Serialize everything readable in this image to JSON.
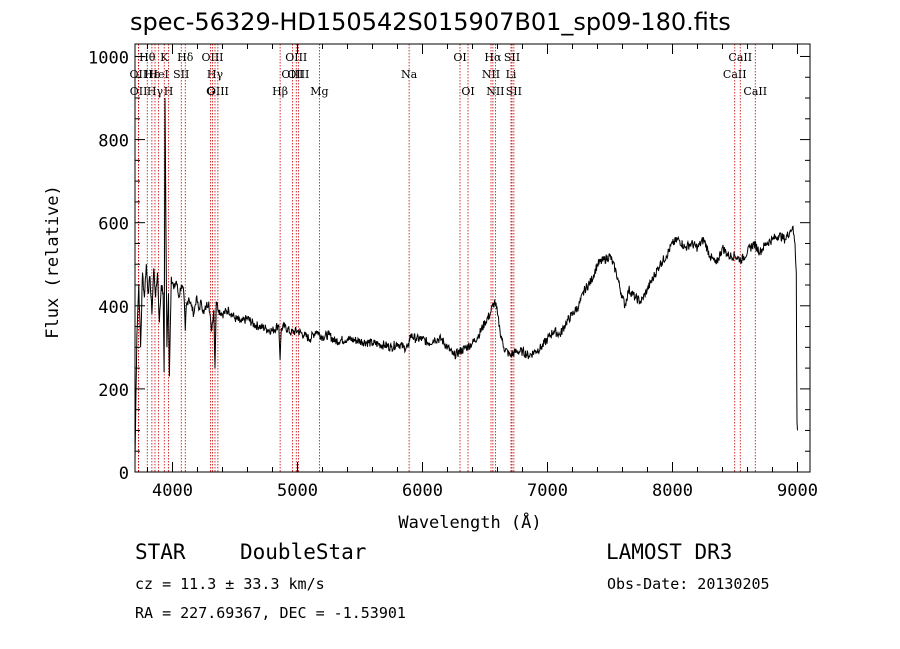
{
  "header": {
    "title": "spec-56329-HD150542S015907B01_sp09-180.fits"
  },
  "info": {
    "object_class": "STAR",
    "subclass": "DoubleStar",
    "survey": "LAMOST DR3",
    "cz": "cz = 11.3 ± 33.3 km/s",
    "obs_date": "Obs-Date: 20130205",
    "radec": "RA = 227.69367, DEC =  -1.53901"
  },
  "chart_data": {
    "type": "line",
    "title": "spec-56329-HD150542S015907B01_sp09-180.fits",
    "xlabel": "Wavelength (Å)",
    "ylabel": "Flux (relative)",
    "xlim": [
      3700,
      9100
    ],
    "ylim": [
      0,
      1030
    ],
    "xticks": [
      4000,
      5000,
      6000,
      7000,
      8000,
      9000
    ],
    "yticks": [
      0,
      200,
      400,
      600,
      800,
      1000
    ],
    "colors": {
      "spectrum": "#000000",
      "lines": "#cc0000",
      "axes": "#000000"
    },
    "series": [
      {
        "name": "spectrum",
        "x": [
          3700,
          3715,
          3730,
          3745,
          3760,
          3775,
          3790,
          3805,
          3820,
          3835,
          3850,
          3865,
          3880,
          3895,
          3910,
          3925,
          3933,
          3940,
          3955,
          3968,
          3975,
          3990,
          4010,
          4030,
          4050,
          4070,
          4090,
          4102,
          4110,
          4130,
          4150,
          4170,
          4190,
          4210,
          4230,
          4250,
          4270,
          4290,
          4310,
          4330,
          4340,
          4350,
          4370,
          4400,
          4450,
          4500,
          4550,
          4600,
          4650,
          4700,
          4750,
          4800,
          4850,
          4861,
          4870,
          4900,
          4950,
          5000,
          5050,
          5100,
          5150,
          5200,
          5250,
          5300,
          5400,
          5500,
          5600,
          5700,
          5750,
          5800,
          5850,
          5890,
          5900,
          5950,
          6000,
          6050,
          6100,
          6150,
          6200,
          6250,
          6300,
          6350,
          6400,
          6450,
          6500,
          6540,
          6563,
          6580,
          6600,
          6620,
          6650,
          6700,
          6750,
          6800,
          6850,
          6900,
          6950,
          7000,
          7050,
          7100,
          7150,
          7200,
          7250,
          7300,
          7350,
          7400,
          7450,
          7500,
          7550,
          7600,
          7620,
          7650,
          7700,
          7750,
          7800,
          7850,
          7900,
          7950,
          8000,
          8050,
          8100,
          8150,
          8200,
          8250,
          8300,
          8350,
          8400,
          8450,
          8500,
          8550,
          8600,
          8650,
          8700,
          8750,
          8800,
          8850,
          8900,
          8940,
          8960,
          8980,
          8990,
          8996,
          9000
        ],
        "values": [
          30,
          330,
          450,
          300,
          480,
          420,
          500,
          430,
          470,
          380,
          490,
          420,
          480,
          360,
          450,
          430,
          240,
          900,
          300,
          430,
          230,
          470,
          440,
          460,
          420,
          450,
          430,
          340,
          400,
          420,
          400,
          380,
          420,
          390,
          410,
          380,
          400,
          410,
          340,
          390,
          250,
          410,
          390,
          380,
          390,
          370,
          360,
          370,
          355,
          350,
          345,
          340,
          355,
          270,
          345,
          350,
          335,
          340,
          330,
          320,
          340,
          325,
          330,
          315,
          320,
          315,
          310,
          305,
          300,
          310,
          300,
          300,
          330,
          320,
          320,
          310,
          320,
          320,
          300,
          280,
          290,
          300,
          310,
          330,
          360,
          380,
          400,
          410,
          380,
          340,
          300,
          280,
          290,
          290,
          280,
          290,
          300,
          320,
          340,
          330,
          360,
          380,
          400,
          440,
          460,
          500,
          510,
          520,
          480,
          420,
          400,
          440,
          420,
          410,
          440,
          470,
          500,
          520,
          550,
          560,
          540,
          550,
          540,
          560,
          520,
          500,
          540,
          520,
          520,
          510,
          530,
          550,
          530,
          550,
          560,
          570,
          560,
          580,
          590,
          550,
          480,
          120,
          100
        ]
      }
    ],
    "annotations": [
      {
        "label": "Hθ",
        "x": 3798,
        "row": 1
      },
      {
        "label": "OII",
        "x": 3727,
        "row": 2
      },
      {
        "label": "OII",
        "x": 3729,
        "row": 3
      },
      {
        "label": "Hε",
        "x": 3835,
        "row": 2
      },
      {
        "label": "HeI",
        "x": 3889,
        "row": 2
      },
      {
        "label": "Hγ",
        "x": 3860,
        "row": 3
      },
      {
        "label": "K",
        "x": 3934,
        "row": 1
      },
      {
        "label": "H",
        "x": 3968,
        "row": 3
      },
      {
        "label": "SII",
        "x": 4070,
        "row": 2
      },
      {
        "label": "Hδ",
        "x": 4102,
        "row": 1
      },
      {
        "label": "OIII",
        "x": 4320,
        "row": 1
      },
      {
        "label": "Hγ",
        "x": 4340,
        "row": 2
      },
      {
        "label": "G",
        "x": 4304,
        "row": 3
      },
      {
        "label": "OIII",
        "x": 4363,
        "row": 3
      },
      {
        "label": "Hβ",
        "x": 4861,
        "row": 3
      },
      {
        "label": "OIII",
        "x": 4990,
        "row": 1
      },
      {
        "label": "OIII",
        "x": 5007,
        "row": 2
      },
      {
        "label": "OIII",
        "x": 4959,
        "row": 2
      },
      {
        "label": "Mg",
        "x": 5175,
        "row": 3
      },
      {
        "label": "Na",
        "x": 5893,
        "row": 2
      },
      {
        "label": "OI",
        "x": 6300,
        "row": 1
      },
      {
        "label": "OI",
        "x": 6364,
        "row": 3
      },
      {
        "label": "Hα",
        "x": 6563,
        "row": 1
      },
      {
        "label": "NII",
        "x": 6548,
        "row": 2
      },
      {
        "label": "NII",
        "x": 6583,
        "row": 3
      },
      {
        "label": "SII",
        "x": 6716,
        "row": 1
      },
      {
        "label": "Li",
        "x": 6708,
        "row": 2
      },
      {
        "label": "SII",
        "x": 6731,
        "row": 3
      },
      {
        "label": "CaII",
        "x": 8542,
        "row": 1
      },
      {
        "label": "CaII",
        "x": 8498,
        "row": 2
      },
      {
        "label": "CaII",
        "x": 8662,
        "row": 3
      }
    ]
  }
}
